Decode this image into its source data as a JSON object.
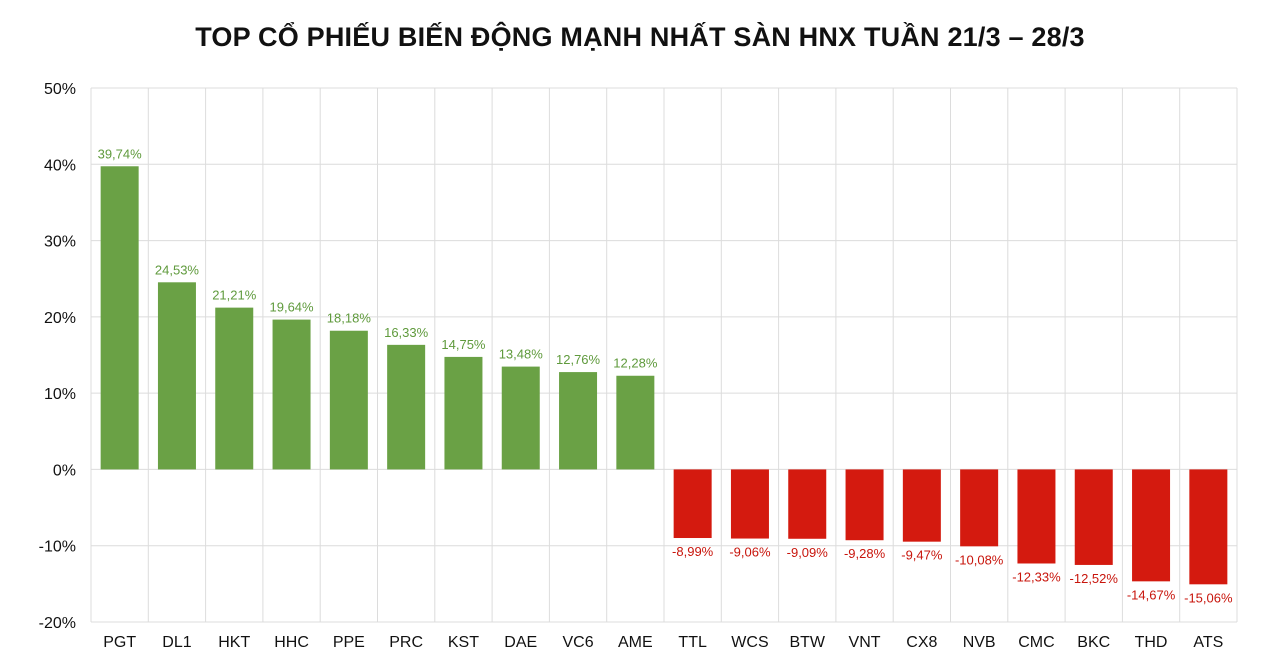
{
  "chart_data": {
    "type": "bar",
    "title": "TOP CỔ PHIẾU BIẾN ĐỘNG MẠNH NHẤT SÀN HNX TUẦN 21/3 – 28/3",
    "xlabel": "",
    "ylabel": "",
    "ylim": [
      -20,
      50
    ],
    "yticks": [
      50,
      40,
      30,
      20,
      10,
      0,
      -10,
      -20
    ],
    "ytick_labels": [
      "50%",
      "40%",
      "30%",
      "20%",
      "10%",
      "0%",
      "-10%",
      "-20%"
    ],
    "grid": true,
    "categories": [
      "PGT",
      "DL1",
      "HKT",
      "HHC",
      "PPE",
      "PRC",
      "KST",
      "DAE",
      "VC6",
      "AME",
      "TTL",
      "WCS",
      "BTW",
      "VNT",
      "CX8",
      "NVB",
      "CMC",
      "BKC",
      "THD",
      "ATS"
    ],
    "values": [
      39.74,
      24.53,
      21.21,
      19.64,
      18.18,
      16.33,
      14.75,
      13.48,
      12.76,
      12.28,
      -8.99,
      -9.06,
      -9.09,
      -9.28,
      -9.47,
      -10.08,
      -12.33,
      -12.52,
      -14.67,
      -15.06
    ],
    "data_labels": [
      "39,74%",
      "24,53%",
      "21,21%",
      "19,64%",
      "18,18%",
      "16,33%",
      "14,75%",
      "13,48%",
      "12,76%",
      "12,28%",
      "-8,99%",
      "-9,06%",
      "-9,09%",
      "-9,28%",
      "-9,47%",
      "-10,08%",
      "-12,33%",
      "-12,52%",
      "-14,67%",
      "-15,06%"
    ],
    "colors": {
      "positive": "#6aa145",
      "negative": "#d41a0f",
      "positive_label": "#5f9a3c",
      "negative_label": "#c8150c",
      "grid": "#dcdcdc",
      "axis": "#c8c8c8"
    }
  }
}
